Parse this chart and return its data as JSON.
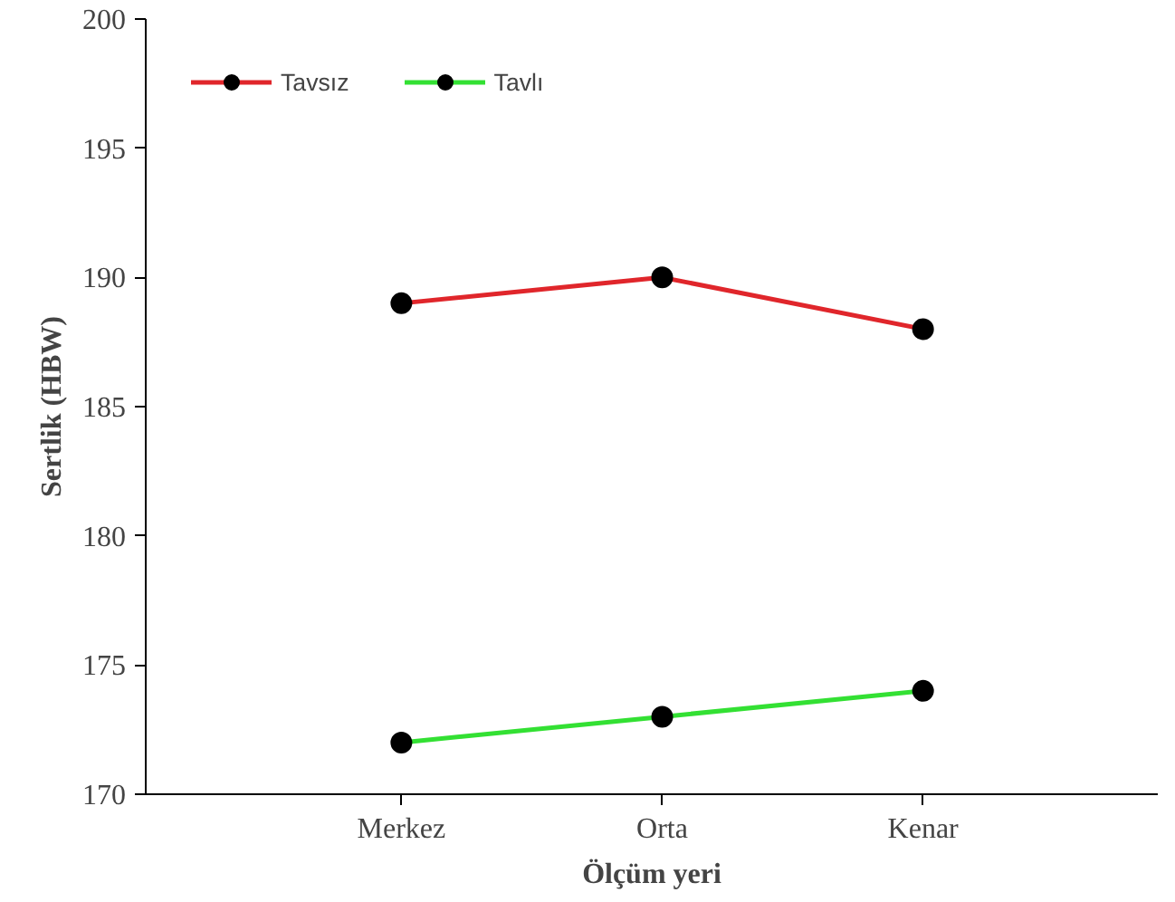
{
  "chart_data": {
    "type": "line",
    "xlabel": "Ölçüm yeri",
    "ylabel": "Sertlik (HBW)",
    "categories": [
      "Merkez",
      "Orta",
      "Kenar"
    ],
    "series": [
      {
        "name": "Tavsız",
        "color": "#e0262b",
        "values": [
          189,
          190,
          188
        ]
      },
      {
        "name": "Tavlı",
        "color": "#33e033",
        "values": [
          172,
          173,
          174
        ]
      }
    ],
    "ylim": [
      170,
      200
    ],
    "yticks": [
      170,
      175,
      180,
      185,
      190,
      195,
      200
    ],
    "grid": false,
    "legend": "top left",
    "marker": "circle",
    "line_style": "solid"
  }
}
